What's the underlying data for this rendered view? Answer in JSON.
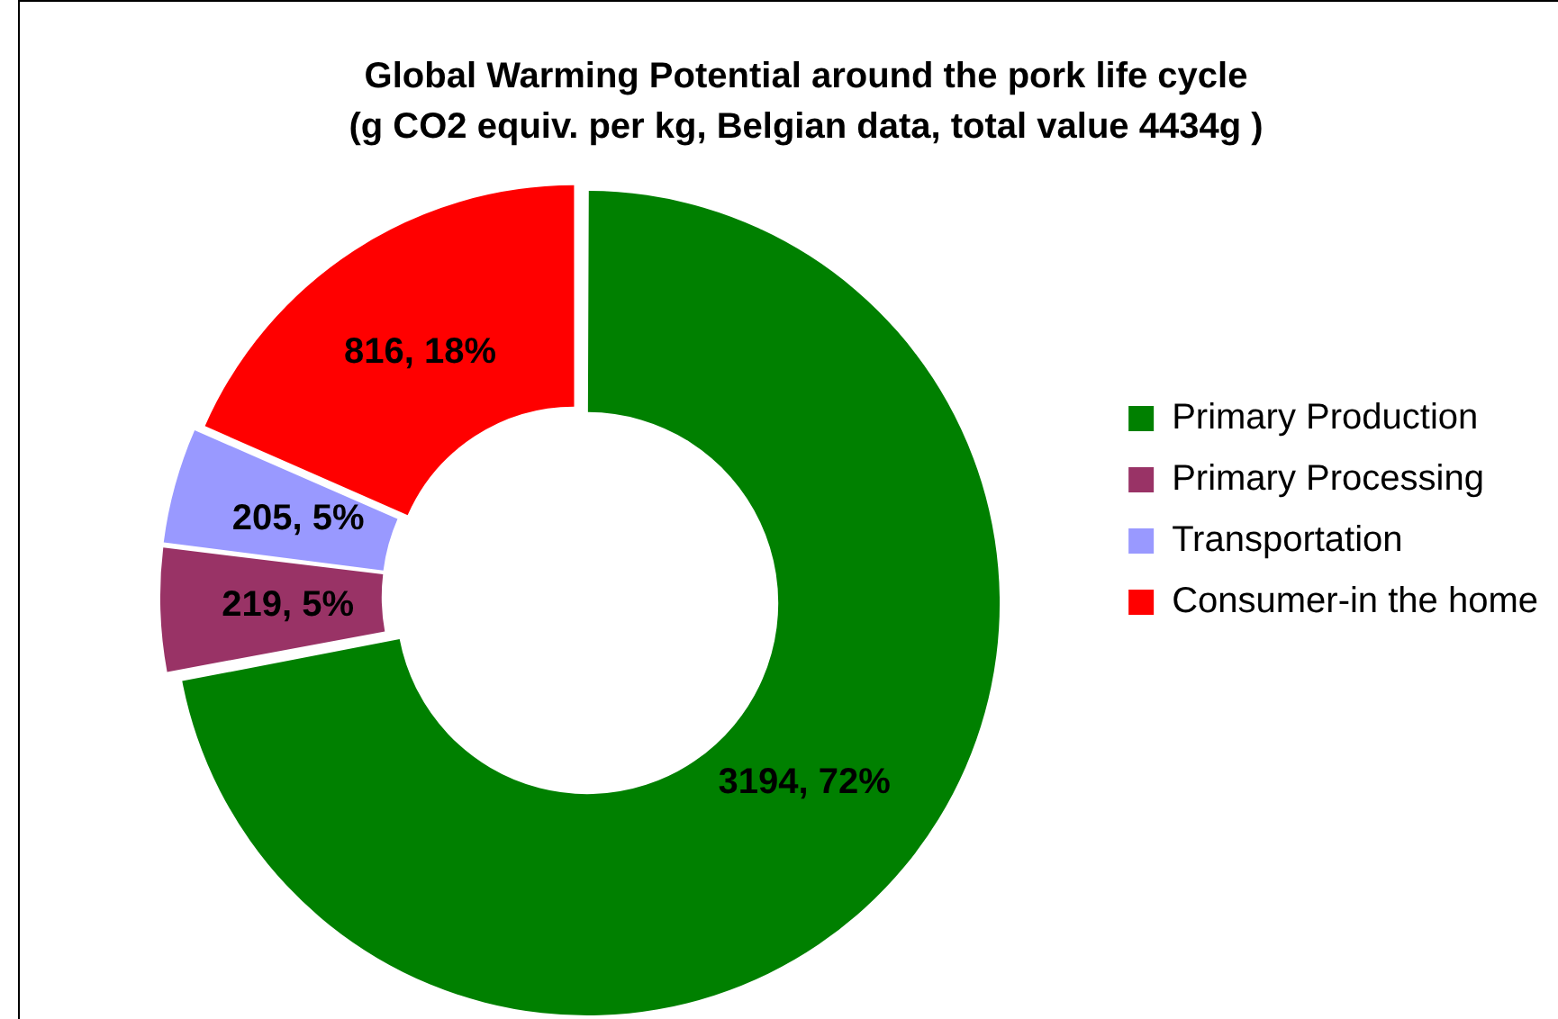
{
  "chart_data": {
    "type": "donut",
    "title": "Global Warming Potential around the pork life cycle",
    "subtitle": "(g CO2 equiv. per kg, Belgian data, total value 4434g )",
    "categories": [
      "Primary Production",
      "Primary Processing",
      "Transportation",
      "Consumer-in the home"
    ],
    "values": [
      3194,
      219,
      205,
      816
    ],
    "colors": [
      "#008000",
      "#993366",
      "#9999ff",
      "#ff0000"
    ],
    "value_labels": [
      "3194, 72%",
      "219, 5%",
      "205, 5%",
      "816, 18%"
    ],
    "legend": "right"
  }
}
